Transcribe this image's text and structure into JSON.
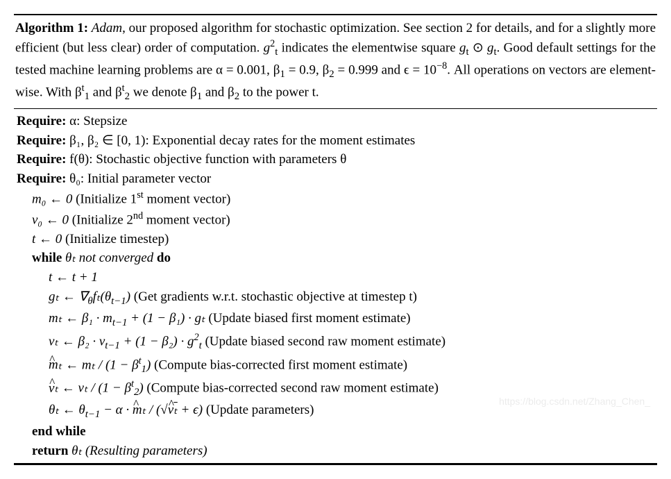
{
  "algorithm": {
    "number": "1",
    "name": "Adam",
    "caption_segments": {
      "lead": "Algorithm 1:",
      "nameit": "Adam",
      "rest1": ", our proposed algorithm for stochastic optimization. See section 2 for details, and for a slightly more efficient (but less clear) order of computation. ",
      "gtsq": "g",
      "rest2": " indicates the elementwise square ",
      "gtodot": "g",
      "odot": " ⊙ ",
      "gt2": "g",
      "rest3": ". Good default settings for the tested machine learning problems are α = 0.001, β",
      "rest4": " = 0.9, β",
      "rest5": " = 0.999 and ϵ = 10",
      "rest6": ". All operations on vectors are element-wise. With β",
      "rest7": " and β",
      "rest8": " we denote β",
      "rest9": " and β",
      "rest10": " to the power t."
    },
    "defaults": {
      "alpha": "0.001",
      "beta1": "0.9",
      "beta2": "0.999",
      "epsilon_exp": "−8"
    },
    "require": [
      {
        "kw": "Require:",
        "body": "α: Stepsize"
      },
      {
        "kw": "Require:",
        "body": "β₁, β₂ ∈ [0, 1): Exponential decay rates for the moment estimates"
      },
      {
        "kw": "Require:",
        "body": "f(θ): Stochastic objective function with parameters θ"
      },
      {
        "kw": "Require:",
        "body": "θ₀: Initial parameter vector"
      }
    ],
    "init": [
      {
        "lhs": "m₀ ← 0",
        "note": "(Initialize 1",
        "supnote": "st",
        "note2": " moment vector)"
      },
      {
        "lhs": "v₀ ← 0",
        "note": "(Initialize 2",
        "supnote": "nd",
        "note2": " moment vector)"
      },
      {
        "lhs": "t ← 0",
        "note": "(Initialize timestep)",
        "supnote": "",
        "note2": ""
      }
    ],
    "while": {
      "kw": "while",
      "cond": "θₜ not converged",
      "do": "do"
    },
    "loop": {
      "step_t": "t ← t + 1",
      "grad_lhs": "gₜ ← ∇",
      "grad_sub": "θ",
      "grad_f": "fₜ(θ",
      "grad_tm1": "t−1",
      "grad_close": ")",
      "grad_note": " (Get gradients w.r.t. stochastic objective at timestep t)",
      "m_update": "mₜ ← β₁ · m",
      "m_tm1": "t−1",
      "m_rest": " + (1 − β₁) · gₜ",
      "m_note": " (Update biased first moment estimate)",
      "v_update": "vₜ ← β₂ · v",
      "v_tm1": "t−1",
      "v_rest": " + (1 − β₂) · g",
      "v_sq": "2",
      "v_sub": "t",
      "v_note": " (Update biased second raw moment estimate)",
      "mhat_lhs_sym": "m",
      "mhat_lhs": "ₜ ← mₜ / (1 − β",
      "mhat_exp": "t",
      "mhat_sub": "1",
      "mhat_close": ")",
      "mhat_note": " (Compute bias-corrected first moment estimate)",
      "vhat_lhs_sym": "v",
      "vhat_lhs": "ₜ ← vₜ / (1 − β",
      "vhat_exp": "t",
      "vhat_sub": "2",
      "vhat_close": ")",
      "vhat_note": " (Compute bias-corrected second raw moment estimate)",
      "theta_lhs": "θₜ ← θ",
      "theta_tm1": "t−1",
      "theta_mid": " − α · ",
      "theta_mhat_sym": "m",
      "theta_mhat_t": "ₜ / (√",
      "theta_vhat_sym": "v",
      "theta_vhat_t": "ₜ",
      "theta_close": " + ϵ)",
      "theta_note": " (Update parameters)"
    },
    "endwhile": "end while",
    "return": {
      "kw": "return",
      "body": " θₜ (Resulting parameters)"
    }
  },
  "watermark": "https://blog.csdn.net/Zhang_Chen_",
  "style": {
    "font_family": "Times New Roman",
    "font_size_pt": 14,
    "text_color": "#000000",
    "background_color": "#ffffff",
    "rule_color": "#000000",
    "watermark_color": "#d9d9d9"
  }
}
